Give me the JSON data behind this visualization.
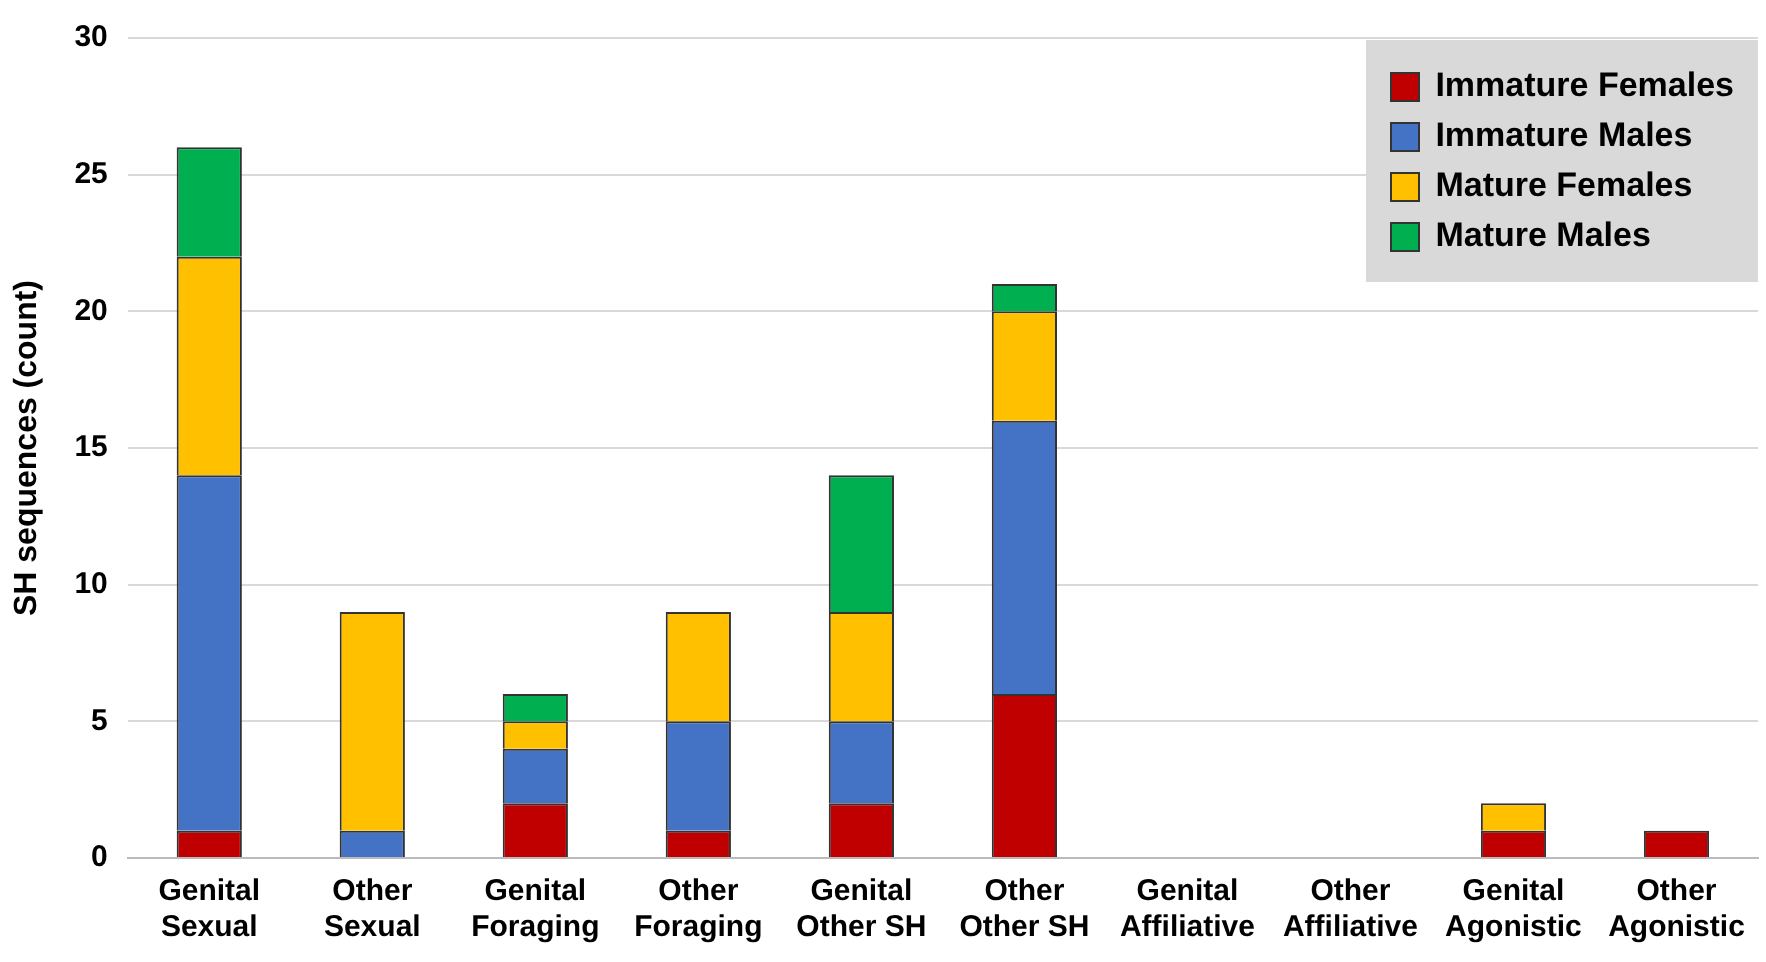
{
  "chart_data": {
    "type": "bar",
    "stacked": true,
    "ylabel": "SH sequences (count)",
    "categories": [
      "Genital Sexual",
      "Other Sexual",
      "Genital Foraging",
      "Other Foraging",
      "Genital Other SH",
      "Other Other SH",
      "Genital Affiliative",
      "Other Affiliative",
      "Genital Agonistic",
      "Other Agonistic"
    ],
    "series": [
      {
        "name": "Immature Females",
        "color": "#c00000",
        "values": [
          1,
          0,
          2,
          1,
          2,
          6,
          0,
          0,
          1,
          1
        ]
      },
      {
        "name": "Immature Males",
        "color": "#4472c4",
        "values": [
          13,
          1,
          2,
          4,
          3,
          10,
          0,
          0,
          0,
          0
        ]
      },
      {
        "name": "Mature Females",
        "color": "#ffc000",
        "values": [
          8,
          8,
          1,
          4,
          4,
          4,
          0,
          0,
          1,
          0
        ]
      },
      {
        "name": "Mature Males",
        "color": "#00b050",
        "values": [
          4,
          0,
          1,
          0,
          5,
          1,
          0,
          0,
          0,
          0
        ]
      }
    ],
    "ylim": [
      0,
      30
    ],
    "yticks": [
      0,
      5,
      10,
      15,
      20,
      25,
      30
    ],
    "grid": "y",
    "legend": "top right"
  }
}
